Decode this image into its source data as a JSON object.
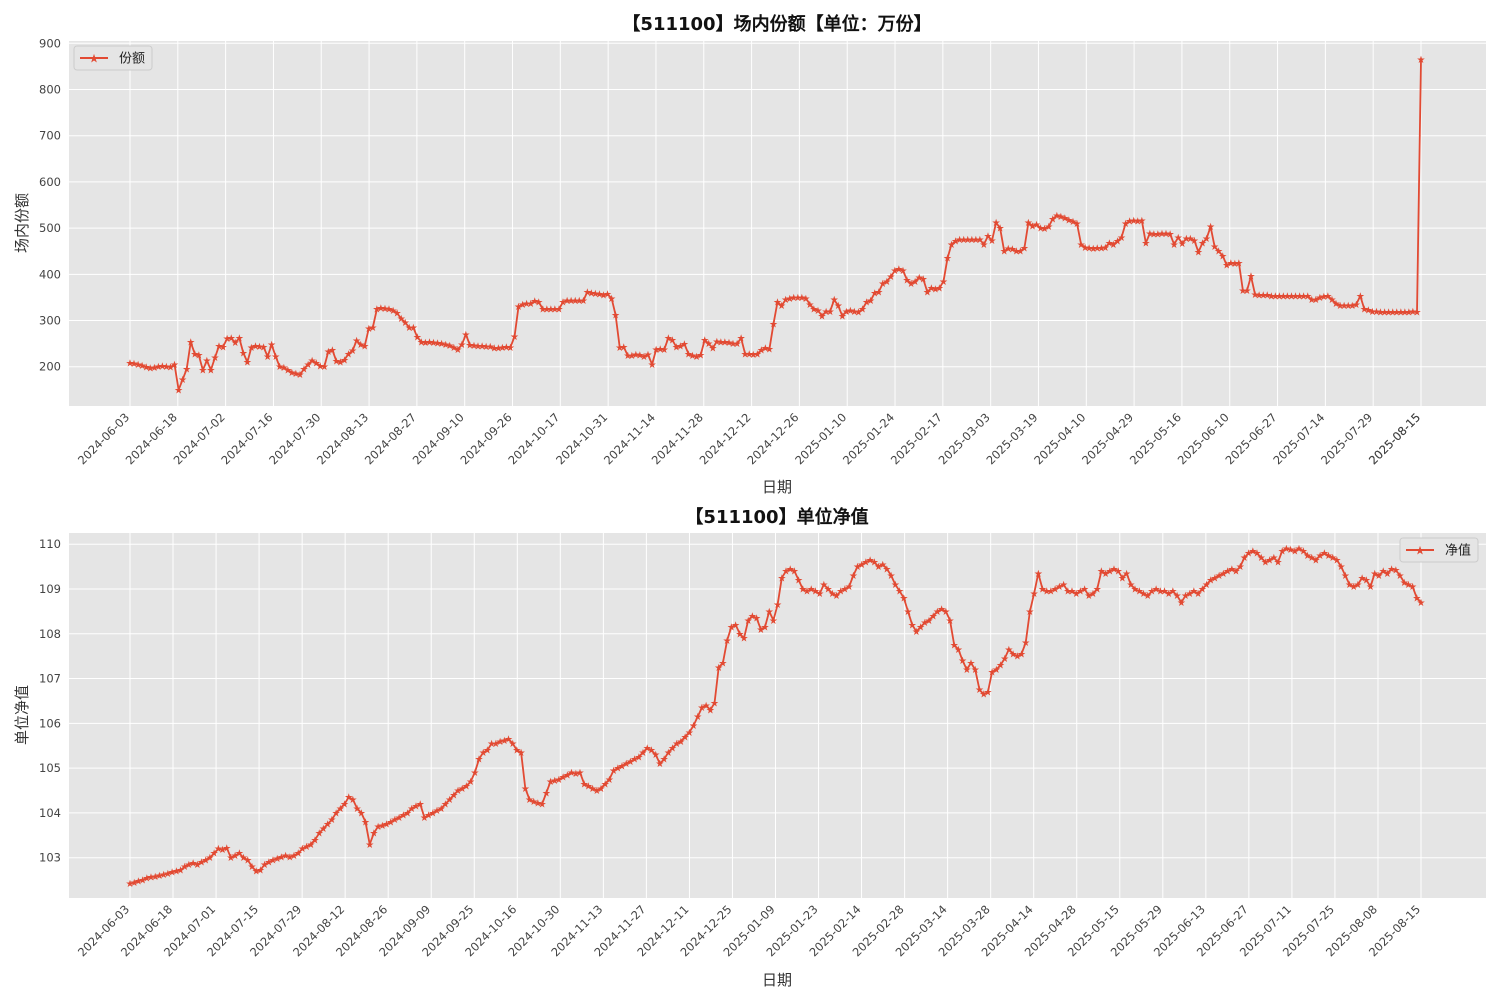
{
  "colors": {
    "series": "#E24A33",
    "axes_bg": "#E5E5E5",
    "grid": "#FFFFFF"
  },
  "chart_data": [
    {
      "type": "line",
      "title": "【511100】场内份额【单位：万份】",
      "xlabel": "日期",
      "ylabel": "场内份额",
      "ylim": [
        115,
        905
      ],
      "yticks": [
        200,
        300,
        400,
        500,
        600,
        700,
        800,
        900
      ],
      "grid": true,
      "legend_position": "top-left",
      "marker": "star",
      "x_tick_labels": [
        "2024-06-03",
        "2024-06-18",
        "2024-07-02",
        "2024-07-16",
        "2024-07-30",
        "2024-08-13",
        "2024-08-27",
        "2024-09-10",
        "2024-09-26",
        "2024-10-17",
        "2024-10-31",
        "2024-11-14",
        "2024-11-28",
        "2024-12-12",
        "2024-12-26",
        "2025-01-10",
        "2025-01-24",
        "2025-02-17",
        "2025-03-03",
        "2025-03-19",
        "2025-04-10",
        "2025-04-29",
        "2025-05-16",
        "2025-06-10",
        "2025-06-27",
        "2025-07-14",
        "2025-07-29",
        "2025-08-15",
        "2025-08-15"
      ],
      "series": [
        {
          "name": "份额",
          "values": [
            208,
            207,
            205,
            203,
            199,
            197,
            198,
            200,
            202,
            201,
            199,
            205,
            150,
            172,
            195,
            253,
            228,
            225,
            193,
            213,
            193,
            220,
            245,
            243,
            261,
            262,
            252,
            262,
            230,
            210,
            242,
            245,
            244,
            243,
            222,
            248,
            222,
            200,
            198,
            193,
            188,
            185,
            183,
            195,
            205,
            213,
            208,
            202,
            200,
            233,
            236,
            212,
            210,
            215,
            228,
            235,
            257,
            248,
            245,
            283,
            285,
            325,
            327,
            326,
            325,
            322,
            316,
            304,
            296,
            285,
            285,
            264,
            254,
            252,
            253,
            252,
            251,
            250,
            248,
            246,
            242,
            237,
            248,
            270,
            247,
            246,
            245,
            245,
            244,
            244,
            240,
            240,
            242,
            243,
            242,
            265,
            330,
            335,
            337,
            337,
            342,
            340,
            325,
            325,
            325,
            325,
            325,
            340,
            343,
            343,
            343,
            343,
            343,
            362,
            360,
            358,
            357,
            355,
            357,
            348,
            312,
            242,
            243,
            224,
            224,
            226,
            225,
            222,
            226,
            205,
            237,
            238,
            237,
            262,
            258,
            243,
            245,
            249,
            228,
            224,
            222,
            225,
            258,
            250,
            240,
            255,
            253,
            253,
            252,
            250,
            250,
            262,
            228,
            228,
            227,
            228,
            236,
            240,
            238,
            293,
            340,
            332,
            345,
            348,
            350,
            350,
            350,
            348,
            335,
            325,
            322,
            310,
            320,
            320,
            345,
            332,
            310,
            320,
            322,
            320,
            318,
            325,
            340,
            343,
            360,
            362,
            380,
            385,
            395,
            408,
            412,
            408,
            388,
            380,
            385,
            393,
            390,
            362,
            370,
            368,
            370,
            385,
            435,
            465,
            472,
            475,
            475,
            475,
            475,
            475,
            475,
            465,
            483,
            473,
            512,
            500,
            450,
            456,
            455,
            450,
            450,
            457,
            512,
            505,
            508,
            500,
            499,
            503,
            520,
            527,
            525,
            522,
            518,
            514,
            510,
            465,
            458,
            457,
            456,
            457,
            457,
            458,
            468,
            465,
            472,
            480,
            510,
            515,
            517,
            515,
            517,
            468,
            488,
            487,
            487,
            488,
            488,
            487,
            465,
            480,
            467,
            478,
            478,
            473,
            448,
            468,
            477,
            503,
            460,
            450,
            440,
            420,
            425,
            423,
            425,
            365,
            365,
            396,
            356,
            355,
            355,
            355,
            353,
            353,
            353,
            353,
            353,
            353,
            353,
            353,
            353,
            353,
            345,
            345,
            350,
            352,
            353,
            345,
            337,
            333,
            333,
            333,
            333,
            335,
            353,
            325,
            323,
            320,
            320,
            318,
            318,
            318,
            318,
            318,
            318,
            318,
            318,
            320,
            318,
            865
          ]
        }
      ]
    },
    {
      "type": "line",
      "title": "【511100】单位净值",
      "xlabel": "日期",
      "ylabel": "单位净值",
      "ylim": [
        102.1,
        110.25
      ],
      "yticks": [
        103,
        104,
        105,
        106,
        107,
        108,
        109,
        110
      ],
      "grid": true,
      "legend_position": "top-right",
      "marker": "star",
      "x_tick_labels": [
        "2024-06-03",
        "2024-06-18",
        "2024-07-01",
        "2024-07-15",
        "2024-07-29",
        "2024-08-12",
        "2024-08-26",
        "2024-09-09",
        "2024-09-25",
        "2024-10-16",
        "2024-10-30",
        "2024-11-13",
        "2024-11-27",
        "2024-12-11",
        "2024-12-25",
        "2025-01-09",
        "2025-01-23",
        "2025-02-14",
        "2025-02-28",
        "2025-03-14",
        "2025-03-28",
        "2025-04-14",
        "2025-04-28",
        "2025-05-15",
        "2025-05-29",
        "2025-06-13",
        "2025-06-27",
        "2025-07-11",
        "2025-07-25",
        "2025-08-08",
        "2025-08-15"
      ],
      "series": [
        {
          "name": "净值",
          "values": [
            102.42,
            102.45,
            102.48,
            102.5,
            102.55,
            102.57,
            102.58,
            102.6,
            102.62,
            102.65,
            102.68,
            102.7,
            102.72,
            102.8,
            102.85,
            102.88,
            102.85,
            102.9,
            102.95,
            103.0,
            103.1,
            103.2,
            103.18,
            103.22,
            103.0,
            103.05,
            103.1,
            103.0,
            102.95,
            102.8,
            102.7,
            102.72,
            102.85,
            102.9,
            102.95,
            102.98,
            103.02,
            103.05,
            103.02,
            103.05,
            103.1,
            103.2,
            103.25,
            103.3,
            103.4,
            103.55,
            103.65,
            103.75,
            103.85,
            104.0,
            104.1,
            104.2,
            104.35,
            104.3,
            104.1,
            104.0,
            103.8,
            103.3,
            103.55,
            103.7,
            103.72,
            103.75,
            103.8,
            103.85,
            103.9,
            103.95,
            104.0,
            104.1,
            104.15,
            104.2,
            103.9,
            103.95,
            104.0,
            104.05,
            104.1,
            104.2,
            104.3,
            104.4,
            104.5,
            104.55,
            104.6,
            104.7,
            104.9,
            105.2,
            105.35,
            105.4,
            105.55,
            105.55,
            105.6,
            105.62,
            105.65,
            105.55,
            105.4,
            105.35,
            104.55,
            104.3,
            104.25,
            104.22,
            104.2,
            104.45,
            104.7,
            104.72,
            104.75,
            104.8,
            104.85,
            104.9,
            104.88,
            104.9,
            104.65,
            104.6,
            104.55,
            104.5,
            104.55,
            104.65,
            104.75,
            104.95,
            105.0,
            105.05,
            105.1,
            105.15,
            105.2,
            105.25,
            105.35,
            105.45,
            105.4,
            105.3,
            105.1,
            105.2,
            105.35,
            105.45,
            105.55,
            105.6,
            105.7,
            105.8,
            105.95,
            106.15,
            106.35,
            106.4,
            106.3,
            106.45,
            107.25,
            107.35,
            107.85,
            108.15,
            108.2,
            108.0,
            107.9,
            108.3,
            108.4,
            108.35,
            108.1,
            108.15,
            108.5,
            108.3,
            108.65,
            109.25,
            109.4,
            109.45,
            109.4,
            109.2,
            109.0,
            108.95,
            109.0,
            108.95,
            108.9,
            109.1,
            109.0,
            108.9,
            108.85,
            108.95,
            109.0,
            109.05,
            109.3,
            109.5,
            109.55,
            109.6,
            109.65,
            109.6,
            109.5,
            109.55,
            109.45,
            109.3,
            109.1,
            108.95,
            108.8,
            108.5,
            108.2,
            108.05,
            108.15,
            108.25,
            108.3,
            108.4,
            108.5,
            108.55,
            108.5,
            108.3,
            107.75,
            107.65,
            107.4,
            107.2,
            107.35,
            107.2,
            106.75,
            106.65,
            106.7,
            107.15,
            107.2,
            107.3,
            107.45,
            107.65,
            107.55,
            107.5,
            107.55,
            107.8,
            108.5,
            108.9,
            109.35,
            109.0,
            108.95,
            108.95,
            109.0,
            109.05,
            109.1,
            108.95,
            108.95,
            108.9,
            108.95,
            109.0,
            108.85,
            108.9,
            109.0,
            109.4,
            109.35,
            109.4,
            109.45,
            109.4,
            109.25,
            109.35,
            109.1,
            109.0,
            108.95,
            108.9,
            108.85,
            108.95,
            109.0,
            108.95,
            108.95,
            108.9,
            108.95,
            108.85,
            108.7,
            108.85,
            108.9,
            108.95,
            108.9,
            109.0,
            109.1,
            109.2,
            109.25,
            109.3,
            109.35,
            109.4,
            109.45,
            109.4,
            109.5,
            109.7,
            109.8,
            109.85,
            109.8,
            109.7,
            109.6,
            109.65,
            109.7,
            109.6,
            109.85,
            109.9,
            109.88,
            109.85,
            109.9,
            109.85,
            109.75,
            109.7,
            109.65,
            109.75,
            109.8,
            109.75,
            109.7,
            109.65,
            109.5,
            109.3,
            109.1,
            109.05,
            109.1,
            109.25,
            109.2,
            109.05,
            109.35,
            109.3,
            109.4,
            109.35,
            109.45,
            109.42,
            109.3,
            109.15,
            109.1,
            109.05,
            108.8,
            108.7
          ]
        }
      ]
    }
  ]
}
